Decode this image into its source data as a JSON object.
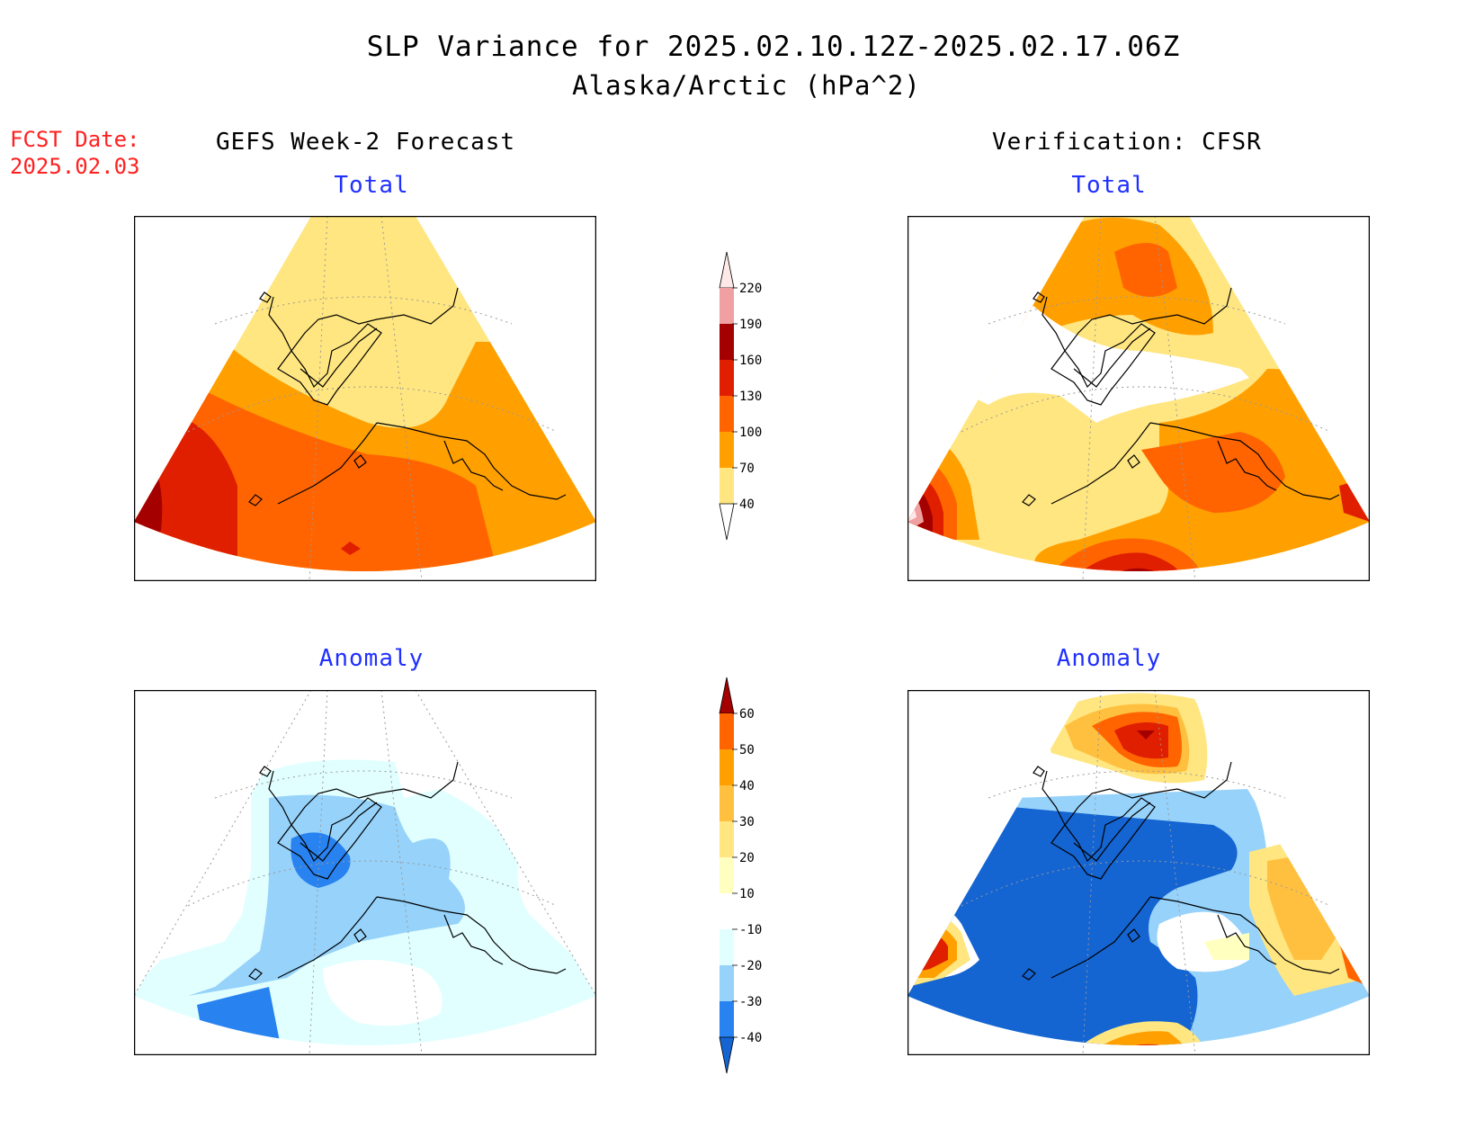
{
  "header": {
    "title": "SLP Variance for 2025.02.10.12Z-2025.02.17.06Z",
    "subtitle": "Alaska/Arctic (hPa^2)",
    "fcst_date_label": "FCST Date:",
    "fcst_date_value": "2025.02.03"
  },
  "columns": {
    "left": "GEFS Week-2 Forecast",
    "right": "Verification: CFSR"
  },
  "panels": {
    "forecast_total": {
      "label": "Total"
    },
    "verification_total": {
      "label": "Total"
    },
    "forecast_anomaly": {
      "label": "Anomaly"
    },
    "verification_anomaly": {
      "label": "Anomaly"
    }
  },
  "colorbars": {
    "total": {
      "levels": [
        "40",
        "70",
        "100",
        "130",
        "160",
        "190",
        "220"
      ],
      "colors": [
        "#ffffff",
        "#ffe680",
        "#ffa000",
        "#ff6400",
        "#e01e00",
        "#a50000",
        "#f0a0a0",
        "#ffe8e8"
      ]
    },
    "anomaly": {
      "levels": [
        "-40",
        "-30",
        "-20",
        "-10",
        "10",
        "20",
        "30",
        "40",
        "50",
        "60"
      ],
      "colors": [
        "#1464d2",
        "#2882f0",
        "#96d2fa",
        "#e1ffff",
        "#ffffff",
        "#ffffc0",
        "#ffe680",
        "#ffc040",
        "#ffa000",
        "#ff6400",
        "#e01e00",
        "#a50000"
      ]
    }
  },
  "colors": {
    "fcst_text": "#ff2020",
    "panel_label": "#2030ff"
  }
}
